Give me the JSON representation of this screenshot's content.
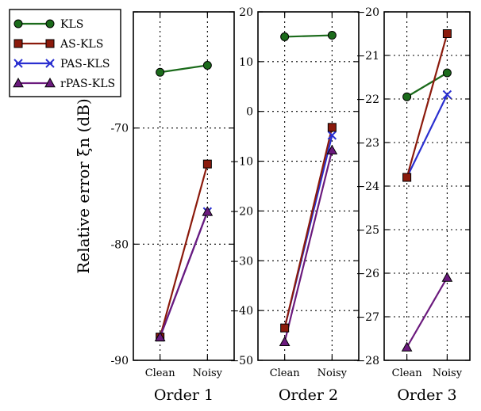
{
  "ylabel": "Relative error ξn (dB)",
  "legend": {
    "placement": "top-left",
    "entries": [
      {
        "name": "KLS",
        "color": "#1b6b1b",
        "marker": "circle"
      },
      {
        "name": "AS-KLS",
        "color": "#8b1a0c",
        "marker": "square"
      },
      {
        "name": "PAS-KLS",
        "color": "#2a2fd0",
        "marker": "x"
      },
      {
        "name": "rPAS-KLS",
        "color": "#6b1a7d",
        "marker": "triangle"
      }
    ]
  },
  "chart_data": [
    {
      "type": "line",
      "title": "Order 1",
      "categories": [
        "Clean",
        "Noisy"
      ],
      "ylim": [
        -90,
        -60
      ],
      "yticks": [
        -90,
        -80,
        -70,
        -60
      ],
      "ytick_labels": [
        "-90",
        "-80",
        "-70",
        ""
      ],
      "grid": true,
      "series": [
        {
          "name": "KLS",
          "values": [
            -65.2,
            -64.6
          ]
        },
        {
          "name": "AS-KLS",
          "values": [
            -88.0,
            -73.1
          ]
        },
        {
          "name": "PAS-KLS",
          "values": [
            -88.0,
            -77.2
          ]
        },
        {
          "name": "rPAS-KLS",
          "values": [
            -88.0,
            -77.2
          ]
        }
      ]
    },
    {
      "type": "line",
      "title": "Order 2",
      "categories": [
        "Clean",
        "Noisy"
      ],
      "ylim": [
        -50,
        20
      ],
      "yticks": [
        -50,
        -40,
        -30,
        -20,
        -10,
        0,
        10,
        20
      ],
      "ytick_labels": [
        "−50",
        "−40",
        "−30",
        "−20",
        "−10",
        "0",
        "10",
        "20"
      ],
      "grid": true,
      "series": [
        {
          "name": "KLS",
          "values": [
            15.0,
            15.3
          ]
        },
        {
          "name": "AS-KLS",
          "values": [
            -43.5,
            -3.2
          ]
        },
        {
          "name": "PAS-KLS",
          "values": [
            -43.5,
            -4.8
          ]
        },
        {
          "name": "rPAS-KLS",
          "values": [
            -46.3,
            -7.8
          ]
        }
      ]
    },
    {
      "type": "line",
      "title": "Order 3",
      "categories": [
        "Clean",
        "Noisy"
      ],
      "ylim": [
        -28,
        -20
      ],
      "yticks": [
        -28,
        -27,
        -26,
        -25,
        -24,
        -23,
        -22,
        -21,
        -20
      ],
      "ytick_labels": [
        "−28",
        "−27",
        "−26",
        "−25",
        "−24",
        "−23",
        "−22",
        "−21",
        "−20"
      ],
      "grid": true,
      "series": [
        {
          "name": "KLS",
          "values": [
            -21.95,
            -21.4
          ]
        },
        {
          "name": "AS-KLS",
          "values": [
            -23.8,
            -20.5
          ]
        },
        {
          "name": "PAS-KLS",
          "values": [
            -23.8,
            -21.9
          ]
        },
        {
          "name": "rPAS-KLS",
          "values": [
            -27.7,
            -26.1
          ]
        }
      ]
    }
  ]
}
